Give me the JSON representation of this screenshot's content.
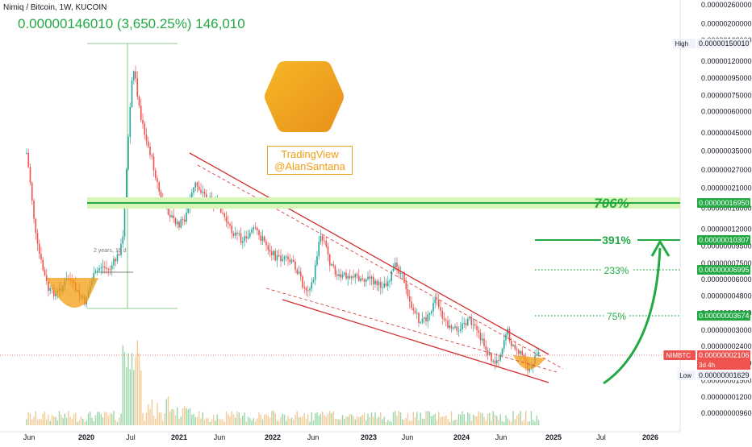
{
  "header": {
    "title": "Nimiq / Bitcoin, 1W, KUCOIN",
    "measure": "0.00000146010 (3,650.25%) 146,010"
  },
  "watermark": {
    "line1": "TradingView",
    "line2": "@AlanSantana"
  },
  "colors": {
    "up": "#26a69a",
    "down": "#ef5350",
    "green": "#22a944",
    "red": "#d32f2f",
    "orange": "#f39c12",
    "axis_text": "#131722"
  },
  "chart_data": {
    "type": "candlestick",
    "symbol": "NIMBTC",
    "timeframe": "1W",
    "exchange": "KUCOIN",
    "price_axis": {
      "scale": "log",
      "labels": [
        "0.00000260000",
        "0.00000200000",
        "0.00000160000",
        "0.00000120000",
        "0.00000095000",
        "0.00000075000",
        "0.00000060000",
        "0.00000045000",
        "0.00000035000",
        "0.00000027000",
        "0.00000021000",
        "0.00000016000",
        "0.00000012000",
        "0.00000009500",
        "0.00000007500",
        "0.00000006000",
        "0.00000004800",
        "0.00000003800",
        "0.00000003000",
        "0.00000002400",
        "0.00000001900",
        "0.00000001500",
        "0.00000001200",
        "0.00000000960"
      ]
    },
    "time_axis": {
      "labels": [
        "Jun",
        "2020",
        "Jul",
        "2021",
        "Jun",
        "2022",
        "Jun",
        "2023",
        "Jun",
        "2024",
        "Jun",
        "2025",
        "Jul",
        "2026"
      ]
    },
    "price_badges": [
      {
        "label": "High",
        "value": "0.00000150010",
        "kind": "high"
      },
      {
        "label": "",
        "value": "0.00000016950",
        "kind": "level"
      },
      {
        "label": "",
        "value": "0.00000010307",
        "kind": "level"
      },
      {
        "label": "",
        "value": "0.00000006995",
        "kind": "level"
      },
      {
        "label": "",
        "value": "0.00000003674",
        "kind": "level"
      },
      {
        "label": "NIMBTC",
        "value": "0.00000002106",
        "sub": "3d 4h",
        "kind": "current"
      },
      {
        "label": "Low",
        "value": "0.00000001629",
        "kind": "low"
      }
    ],
    "targets": [
      {
        "label": "706%",
        "value": 1.695e-07
      },
      {
        "label": "391%",
        "value": 1.0307e-07
      },
      {
        "label": "233%",
        "value": 6.995e-08
      },
      {
        "label": "75%",
        "value": 3.674e-08
      }
    ],
    "measure_box": {
      "low_label": "2 years, 15 d",
      "pct": "3,650.25%"
    }
  }
}
